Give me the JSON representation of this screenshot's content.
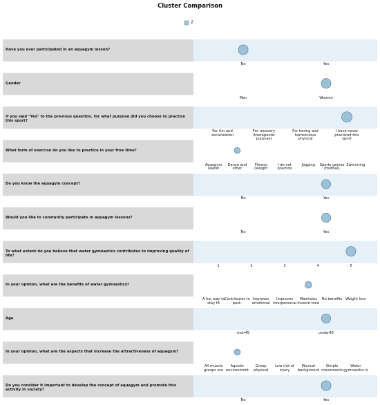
{
  "title": "Cluster Comparison",
  "legend": "2",
  "color": "#9cc2da",
  "rows": [
    {
      "question": "Have you ever participated in an aquagym lesson?",
      "categories": [
        "No",
        "Yes"
      ],
      "mode": 0,
      "size": 0.9
    },
    {
      "question": "Gender",
      "categories": [
        "Men",
        "Women"
      ],
      "mode": 1,
      "size": 0.9
    },
    {
      "question": "If you said \"Yes\" to the previous question, for what purpose did you choose to practice this sport?",
      "categories": [
        "For fun and socialization",
        "For recovery (therapeutic purpose)",
        "For toning and harmonious physical",
        "I have never practiced this sport"
      ],
      "mode": 3,
      "size": 1.0
    },
    {
      "question": "What form of exercise do you like to practice in your free time?",
      "categories": [
        "Aquagym (water",
        "Dance and other",
        "Fitness (weight",
        "I do not practice",
        "Jogging",
        "Sports games (football,",
        "Swimming"
      ],
      "mode": 1,
      "size": 0.3
    },
    {
      "question": "Do you know the aquagym concept?",
      "categories": [
        "No",
        "Yes"
      ],
      "mode": 1,
      "size": 0.8
    },
    {
      "question": "Would you like to constantly participate in aquagym lessons?",
      "categories": [
        "No",
        "Yes"
      ],
      "mode": 1,
      "size": 0.8
    },
    {
      "question": "To what extent do you believe that water gymnastics contributes to improving quality of life?",
      "categories": [
        "1",
        "2",
        "3",
        "4",
        "5"
      ],
      "mode": 4,
      "size": 0.9
    },
    {
      "question": "In your opinion, what are the benefits of water gymnastics?",
      "categories": [
        "A fun way to stay fit",
        "Contributes to post-",
        "Improves emotional",
        "Improves interpersonal",
        "Maintains muscle tone",
        "No benefits",
        "Weight loss"
      ],
      "mode": 4,
      "size": 0.4
    },
    {
      "question": "Age",
      "categories": [
        "over45",
        "under45"
      ],
      "mode": 1,
      "size": 0.8
    },
    {
      "question": "In your opinion, what are the aspects that increase the attractiveness of aquagym?",
      "categories": [
        "All muscle groups are",
        "Aquatic environment",
        "Group physical",
        "Low risk of injury",
        "Musical background",
        "Simple movements",
        "Water gymnastics is"
      ],
      "mode": 1,
      "size": 0.3
    },
    {
      "question": "Do you consider it important to develop the concept of aquagym and promote this activity in society?",
      "categories": [
        "No",
        "Yes"
      ],
      "mode": 1,
      "size": 0.9
    }
  ]
}
